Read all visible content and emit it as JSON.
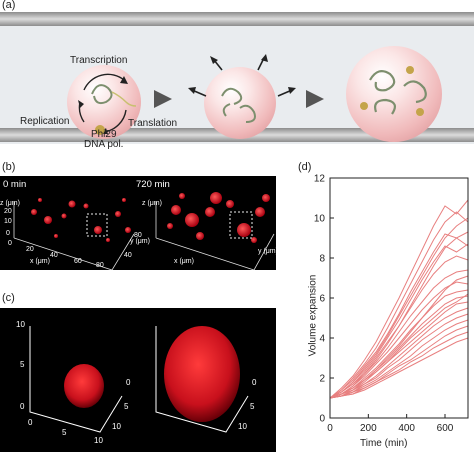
{
  "panel_a": {
    "label": "(a)",
    "transcription": "Transcription",
    "replication": "Replication",
    "translation": "Translation",
    "polymerase": "Phi29\nDNA pol."
  },
  "panel_b": {
    "label": "(b)",
    "time_start": "0 min",
    "time_end": "720 min",
    "z_axis": "z (μm)",
    "x_axis": "x (μm)",
    "y_axis": "y (μm)",
    "z_ticks": [
      "0",
      "10",
      "20"
    ],
    "x_ticks": [
      "0",
      "20",
      "40",
      "60",
      "80"
    ],
    "y_ticks": [
      "40",
      "80"
    ]
  },
  "panel_c": {
    "label": "(c)",
    "z_ticks": [
      "0",
      "5",
      "10"
    ],
    "x_ticks": [
      "0",
      "5",
      "10"
    ],
    "y_ticks": [
      "0",
      "5",
      "10"
    ]
  },
  "panel_d": {
    "label": "(d)"
  },
  "chart_data": {
    "type": "line",
    "title": "",
    "xlabel": "Time (min)",
    "ylabel": "Volume expansion",
    "xlim": [
      0,
      720
    ],
    "ylim": [
      0,
      12
    ],
    "xticks": [
      0,
      200,
      400,
      600
    ],
    "yticks": [
      0,
      2,
      4,
      6,
      8,
      10,
      12
    ],
    "line_color": "#e88080",
    "x": [
      0,
      60,
      120,
      180,
      240,
      300,
      360,
      420,
      480,
      540,
      600,
      660,
      720
    ],
    "series": [
      {
        "values": [
          1.0,
          1.5,
          2.1,
          2.9,
          3.8,
          4.9,
          6.0,
          7.2,
          8.4,
          9.6,
          10.6,
          10.2,
          10.9
        ]
      },
      {
        "values": [
          1.0,
          1.4,
          2.0,
          2.7,
          3.5,
          4.5,
          5.6,
          6.7,
          7.8,
          8.9,
          9.8,
          10.3,
          9.8
        ]
      },
      {
        "values": [
          1.0,
          1.4,
          1.9,
          2.6,
          3.3,
          4.2,
          5.2,
          6.3,
          7.3,
          8.3,
          9.2,
          9.0,
          9.3
        ]
      },
      {
        "values": [
          1.0,
          1.3,
          1.8,
          2.4,
          3.1,
          4.0,
          4.9,
          5.9,
          6.9,
          7.8,
          8.6,
          8.3,
          8.7
        ]
      },
      {
        "values": [
          1.0,
          1.3,
          1.7,
          2.3,
          3.0,
          3.8,
          4.6,
          5.5,
          6.4,
          7.2,
          7.8,
          8.1,
          7.9
        ]
      },
      {
        "values": [
          1.0,
          1.3,
          1.7,
          2.2,
          2.8,
          3.5,
          4.3,
          5.1,
          5.8,
          6.5,
          7.0,
          7.3,
          7.4
        ]
      },
      {
        "values": [
          1.0,
          1.2,
          1.6,
          2.1,
          2.7,
          3.3,
          4.0,
          4.7,
          5.4,
          6.0,
          6.5,
          6.8,
          6.7
        ]
      },
      {
        "values": [
          1.0,
          1.2,
          1.5,
          2.0,
          2.5,
          3.1,
          3.7,
          4.4,
          5.0,
          5.6,
          6.1,
          6.3,
          6.4
        ]
      },
      {
        "values": [
          1.0,
          1.2,
          1.5,
          1.9,
          2.4,
          2.9,
          3.5,
          4.1,
          4.7,
          5.2,
          5.7,
          6.0,
          6.1
        ]
      },
      {
        "values": [
          1.0,
          1.2,
          1.4,
          1.8,
          2.3,
          2.8,
          3.3,
          3.8,
          4.3,
          4.8,
          5.3,
          5.7,
          5.8
        ]
      },
      {
        "values": [
          1.0,
          1.1,
          1.4,
          1.7,
          2.1,
          2.6,
          3.1,
          3.6,
          4.1,
          4.6,
          5.0,
          5.3,
          5.5
        ]
      },
      {
        "values": [
          1.0,
          1.1,
          1.3,
          1.7,
          2.0,
          2.5,
          2.9,
          3.4,
          3.9,
          4.3,
          4.7,
          5.0,
          5.2
        ]
      },
      {
        "values": [
          1.0,
          1.1,
          1.3,
          1.6,
          1.9,
          2.3,
          2.7,
          3.1,
          3.6,
          4.0,
          4.4,
          4.7,
          4.9
        ]
      },
      {
        "values": [
          1.0,
          1.1,
          1.3,
          1.5,
          1.8,
          2.2,
          2.6,
          2.9,
          3.3,
          3.7,
          4.1,
          4.4,
          4.6
        ]
      },
      {
        "values": [
          1.0,
          1.1,
          1.2,
          1.5,
          1.8,
          2.1,
          2.4,
          2.8,
          3.1,
          3.5,
          3.8,
          4.1,
          4.3
        ]
      },
      {
        "values": [
          1.0,
          1.1,
          1.2,
          1.4,
          1.7,
          2.0,
          2.3,
          2.6,
          2.9,
          3.2,
          3.5,
          3.8,
          4.0
        ]
      },
      {
        "values": [
          1.0,
          1.2,
          1.6,
          2.2,
          2.9,
          3.7,
          4.6,
          5.6,
          6.6,
          7.6,
          8.5,
          9.0,
          8.6
        ]
      },
      {
        "values": [
          1.0,
          1.3,
          1.8,
          2.5,
          3.2,
          4.1,
          5.1,
          6.1,
          7.1,
          8.1,
          9.0,
          9.6,
          10.0
        ]
      },
      {
        "values": [
          1.0,
          1.1,
          1.4,
          1.9,
          2.4,
          3.0,
          3.6,
          4.3,
          5.0,
          5.7,
          6.4,
          6.9,
          7.1
        ]
      },
      {
        "values": [
          1.0,
          1.2,
          1.5,
          1.9,
          2.3,
          2.8,
          3.4,
          4.0,
          4.5,
          5.0,
          5.5,
          5.8,
          6.2
        ]
      }
    ]
  }
}
